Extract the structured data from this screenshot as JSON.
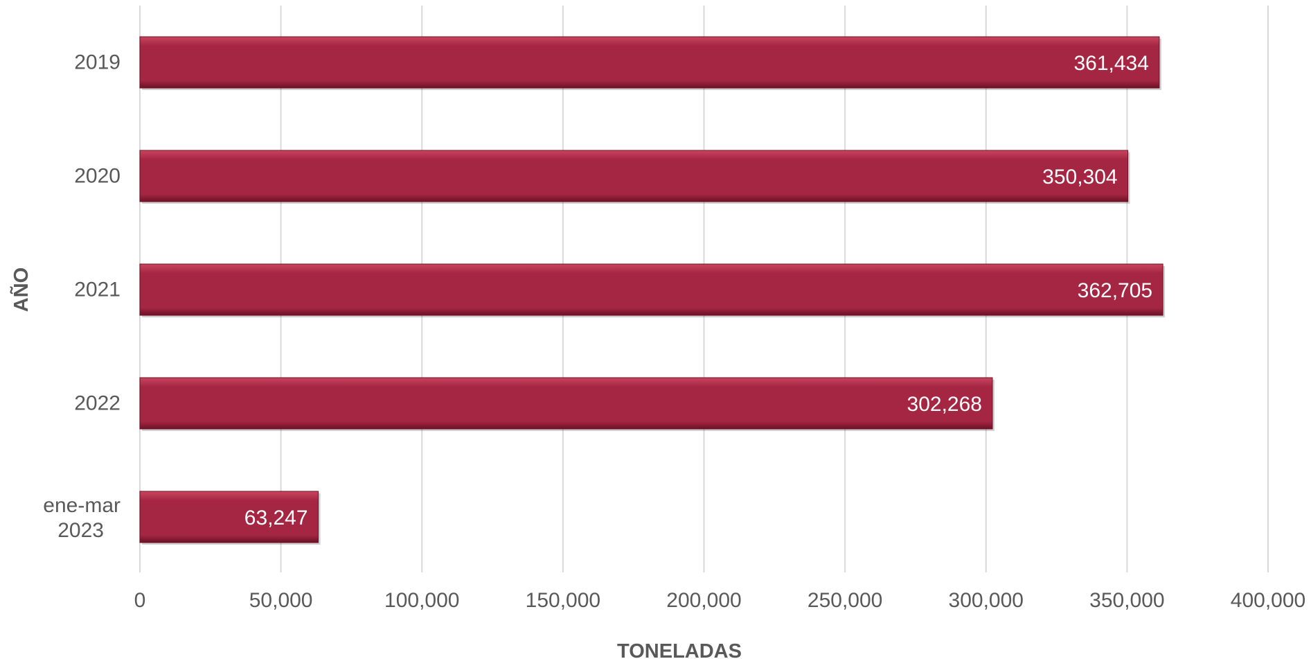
{
  "chart_data": {
    "type": "bar",
    "orientation": "horizontal",
    "categories": [
      [
        "2019"
      ],
      [
        "2020"
      ],
      [
        "2021"
      ],
      [
        "2022"
      ],
      [
        "ene-mar",
        "2023"
      ]
    ],
    "values": [
      361434,
      350304,
      362705,
      302268,
      63247
    ],
    "value_labels": [
      "361,434",
      "350,304",
      "362,705",
      "302,268",
      "63,247"
    ],
    "xticks": [
      0,
      50000,
      100000,
      150000,
      200000,
      250000,
      300000,
      350000,
      400000
    ],
    "xtick_labels": [
      "0",
      "50,000",
      "100,000",
      "150,000",
      "200,000",
      "250,000",
      "300,000",
      "350,000",
      "400,000"
    ],
    "xlim": [
      0,
      400000
    ],
    "xlabel": "TONELADAS",
    "ylabel": "AÑO",
    "grid": true,
    "colors": {
      "bar": "#a52642",
      "bar_highlight": "#c9455f",
      "bar_shadow": "#6e1126",
      "label": "#595959",
      "grid": "#d9d9d9"
    }
  }
}
